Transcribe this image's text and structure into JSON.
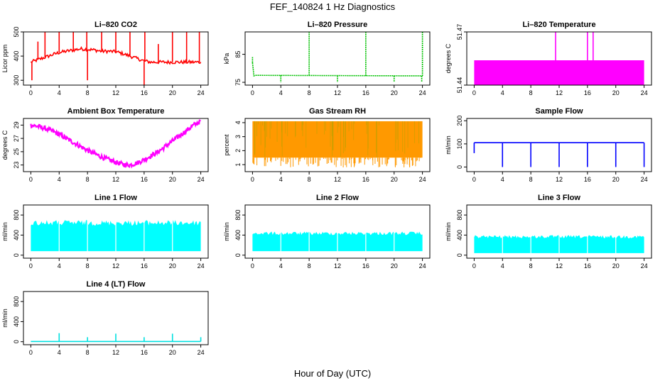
{
  "figure": {
    "title": "FEF_140824  1 Hz Diagnostics",
    "xlabel": "Hour of Day (UTC)"
  },
  "chart_data": [
    {
      "type": "line",
      "title": "Li–820 CO2",
      "ylabel": "Licor ppm",
      "color": "#ff0000",
      "xlim": [
        0,
        24
      ],
      "ylim": [
        280,
        500
      ],
      "xticks": [
        "0",
        "4",
        "8",
        "12",
        "16",
        "20",
        "24"
      ],
      "yticks": [
        "300",
        "400",
        "500"
      ],
      "series": [
        {
          "x": [
            0,
            1,
            2,
            3,
            4,
            5,
            6,
            7,
            8,
            9,
            10,
            11,
            12,
            13,
            14,
            15,
            16,
            17,
            18,
            19,
            20,
            21,
            22,
            23,
            24
          ],
          "values": [
            375,
            385,
            395,
            405,
            415,
            420,
            425,
            430,
            428,
            425,
            420,
            420,
            418,
            410,
            400,
            390,
            380,
            375,
            375,
            375,
            375,
            375,
            375,
            375,
            375
          ]
        }
      ],
      "spikes": [
        {
          "x": 0.15,
          "to": 300
        },
        {
          "x": 1.0,
          "to": 460
        },
        {
          "x": 2.0,
          "to": 500
        },
        {
          "x": 4.0,
          "to": 500
        },
        {
          "x": 6.0,
          "to": 500
        },
        {
          "x": 7.9,
          "to": 500
        },
        {
          "x": 8.0,
          "to": 300
        },
        {
          "x": 10.0,
          "to": 500
        },
        {
          "x": 12.0,
          "to": 500
        },
        {
          "x": 14.0,
          "to": 500
        },
        {
          "x": 16.0,
          "to": 280
        },
        {
          "x": 16.1,
          "to": 500
        },
        {
          "x": 18.0,
          "to": 450
        },
        {
          "x": 20.0,
          "to": 500
        },
        {
          "x": 22.0,
          "to": 500
        },
        {
          "x": 23.8,
          "to": 500
        }
      ]
    },
    {
      "type": "line",
      "title": "Li–820 Pressure",
      "ylabel": "kPa",
      "color": "#00c000",
      "xlim": [
        0,
        24
      ],
      "ylim": [
        74,
        93
      ],
      "xticks": [
        "0",
        "4",
        "8",
        "12",
        "16",
        "20",
        "24"
      ],
      "yticks": [
        "75",
        "85"
      ],
      "series": [
        {
          "x": [
            0,
            0.2,
            0.4,
            24
          ],
          "values": [
            82,
            77.3,
            77.5,
            77.3
          ]
        }
      ],
      "spikes": [
        {
          "x": 0.0,
          "to": 84
        },
        {
          "x": 4.0,
          "to": 75
        },
        {
          "x": 8.0,
          "to": 93
        },
        {
          "x": 12.0,
          "to": 75
        },
        {
          "x": 16.0,
          "to": 93
        },
        {
          "x": 20.0,
          "to": 75
        },
        {
          "x": 24.0,
          "to": 93
        },
        {
          "x": 23.9,
          "to": 75
        }
      ]
    },
    {
      "type": "area",
      "title": "Li–820 Temperature",
      "ylabel": "degrees C",
      "color": "#ff00ff",
      "xlim": [
        0,
        24
      ],
      "ylim": [
        51.44,
        51.47
      ],
      "xticks": [
        "0",
        "4",
        "8",
        "12",
        "16",
        "20",
        "24"
      ],
      "yticks": [
        "51.44",
        "51.47"
      ],
      "band": {
        "x0": 0,
        "x1": 24,
        "low": 51.44,
        "high": 51.454
      },
      "spikes": [
        {
          "x": 11.5,
          "to": 51.47
        },
        {
          "x": 16.0,
          "to": 51.47
        },
        {
          "x": 16.8,
          "to": 51.47
        }
      ]
    },
    {
      "type": "line",
      "title": "Ambient Box Temperature",
      "ylabel": "degrees C",
      "color": "#ff00ff",
      "xlim": [
        0,
        24
      ],
      "ylim": [
        22,
        30
      ],
      "xticks": [
        "0",
        "4",
        "8",
        "12",
        "16",
        "20",
        "24"
      ],
      "yticks": [
        "23",
        "25",
        "27",
        "29"
      ],
      "series": [
        {
          "x": [
            0,
            1,
            2,
            3,
            4,
            5,
            6,
            7,
            8,
            9,
            10,
            11,
            12,
            13,
            14,
            15,
            16,
            17,
            18,
            19,
            20,
            21,
            22,
            23,
            24
          ],
          "values": [
            29.0,
            28.8,
            28.5,
            28.1,
            27.6,
            27.0,
            26.4,
            25.8,
            25.2,
            24.7,
            24.2,
            23.8,
            23.4,
            23.1,
            23.0,
            23.3,
            23.8,
            24.4,
            25.0,
            25.8,
            26.6,
            27.4,
            28.2,
            29.0,
            29.6
          ]
        }
      ],
      "noise": 0.35
    },
    {
      "type": "area",
      "title": "Gas Stream RH",
      "ylabel": "percent",
      "color": "#ff9900",
      "xlim": [
        0,
        24
      ],
      "ylim": [
        0.5,
        4.3
      ],
      "xticks": [
        "0",
        "4",
        "8",
        "12",
        "16",
        "20",
        "24"
      ],
      "yticks": [
        "1",
        "2",
        "3",
        "4"
      ],
      "band": {
        "x0": 0,
        "x1": 24,
        "low": 1.5,
        "high": 4.1
      },
      "dips_to": 0.8
    },
    {
      "type": "line",
      "title": "Sample Flow",
      "ylabel": "ml/min",
      "color": "#0000ff",
      "xlim": [
        0,
        24
      ],
      "ylim": [
        -20,
        210
      ],
      "xticks": [
        "0",
        "4",
        "8",
        "12",
        "16",
        "20",
        "24"
      ],
      "yticks": [
        "0",
        "100",
        "200"
      ],
      "series": [
        {
          "x": [
            0,
            24
          ],
          "values": [
            105,
            105
          ]
        }
      ],
      "spikes": [
        {
          "x": 0.0,
          "to": 60
        },
        {
          "x": 4.0,
          "to": 0
        },
        {
          "x": 8.0,
          "to": 0
        },
        {
          "x": 12.0,
          "to": 0
        },
        {
          "x": 16.0,
          "to": 0
        },
        {
          "x": 20.0,
          "to": 0
        },
        {
          "x": 24.0,
          "to": 0
        }
      ]
    },
    {
      "type": "area",
      "title": "Line 1 Flow",
      "ylabel": "ml/min",
      "color": "#00ffff",
      "xlim": [
        0,
        24
      ],
      "ylim": [
        -60,
        1000
      ],
      "xticks": [
        "0",
        "4",
        "8",
        "12",
        "16",
        "20",
        "24"
      ],
      "yticks": [
        "0",
        "400",
        "800"
      ],
      "band": {
        "x0": 0,
        "x1": 24,
        "low": 80,
        "high": 700
      },
      "gaps": [
        4,
        8,
        12,
        16,
        20
      ]
    },
    {
      "type": "area",
      "title": "Line 2 Flow",
      "ylabel": "ml/min",
      "color": "#00ffff",
      "xlim": [
        0,
        24
      ],
      "ylim": [
        -60,
        1000
      ],
      "xticks": [
        "0",
        "4",
        "8",
        "12",
        "16",
        "20",
        "24"
      ],
      "yticks": [
        "0",
        "400",
        "800"
      ],
      "band": {
        "x0": 0,
        "x1": 24,
        "low": 80,
        "high": 470
      },
      "gaps": [
        4,
        8,
        12,
        16,
        20
      ]
    },
    {
      "type": "area",
      "title": "Line 3 Flow",
      "ylabel": "ml/min",
      "color": "#00ffff",
      "xlim": [
        0,
        24
      ],
      "ylim": [
        -60,
        1000
      ],
      "xticks": [
        "0",
        "4",
        "8",
        "12",
        "16",
        "20",
        "24"
      ],
      "yticks": [
        "0",
        "400",
        "800"
      ],
      "band": {
        "x0": 0,
        "x1": 24,
        "low": 40,
        "high": 400
      },
      "gaps": [
        4,
        8,
        12,
        16,
        20
      ]
    },
    {
      "type": "line",
      "title": "Line 4 (LT) Flow",
      "ylabel": "ml/min",
      "color": "#00e0e0",
      "xlim": [
        0,
        24
      ],
      "ylim": [
        -60,
        1000
      ],
      "xticks": [
        "0",
        "4",
        "8",
        "12",
        "16",
        "20",
        "24"
      ],
      "yticks": [
        "0",
        "400",
        "800"
      ],
      "series": [
        {
          "x": [
            0,
            24
          ],
          "values": [
            5,
            5
          ]
        }
      ],
      "spikes": [
        {
          "x": 4.0,
          "to": 170
        },
        {
          "x": 8.0,
          "to": 90
        },
        {
          "x": 12.0,
          "to": 160
        },
        {
          "x": 16.0,
          "to": 90
        },
        {
          "x": 20.0,
          "to": 160
        },
        {
          "x": 24.0,
          "to": 90
        }
      ]
    }
  ]
}
